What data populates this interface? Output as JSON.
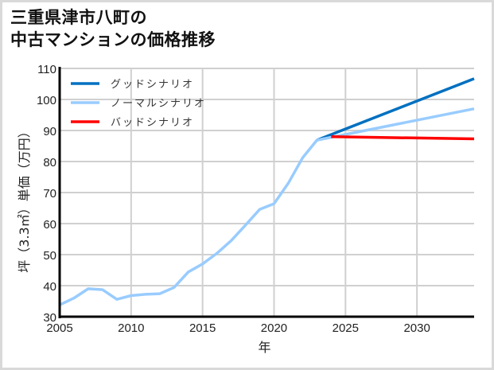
{
  "title_line1": "三重県津市八町の",
  "title_line2": "中古マンションの価格推移",
  "chart_data": {
    "type": "line",
    "title": "三重県津市八町の中古マンションの価格推移",
    "xlabel": "年",
    "ylabel": "坪（3.3㎡）単価（万円）",
    "xlim": [
      2005,
      2034
    ],
    "ylim": [
      30,
      110
    ],
    "xticks": [
      2005,
      2010,
      2015,
      2020,
      2025,
      2030
    ],
    "yticks": [
      30,
      40,
      50,
      60,
      70,
      80,
      90,
      100,
      110
    ],
    "grid": true,
    "legend_position": "upper-left",
    "series": [
      {
        "name": "グッドシナリオ",
        "color": "#0070c0",
        "x": [
          2023,
          2034
        ],
        "values": [
          86.9,
          106.7
        ]
      },
      {
        "name": "ノーマルシナリオ",
        "color": "#99ccff",
        "x": [
          2005,
          2006,
          2007,
          2008,
          2009,
          2010,
          2011,
          2012,
          2013,
          2014,
          2015,
          2016,
          2017,
          2018,
          2019,
          2020,
          2021,
          2022,
          2023,
          2034
        ],
        "values": [
          33.8,
          36.0,
          39.0,
          38.7,
          35.6,
          36.8,
          37.2,
          37.4,
          39.4,
          44.4,
          47.0,
          50.4,
          54.5,
          59.5,
          64.6,
          66.4,
          73.0,
          81.2,
          86.9,
          97.0
        ]
      },
      {
        "name": "バッドシナリオ",
        "color": "#ff0000",
        "x": [
          2024,
          2034
        ],
        "values": [
          88.0,
          87.3
        ]
      }
    ]
  }
}
